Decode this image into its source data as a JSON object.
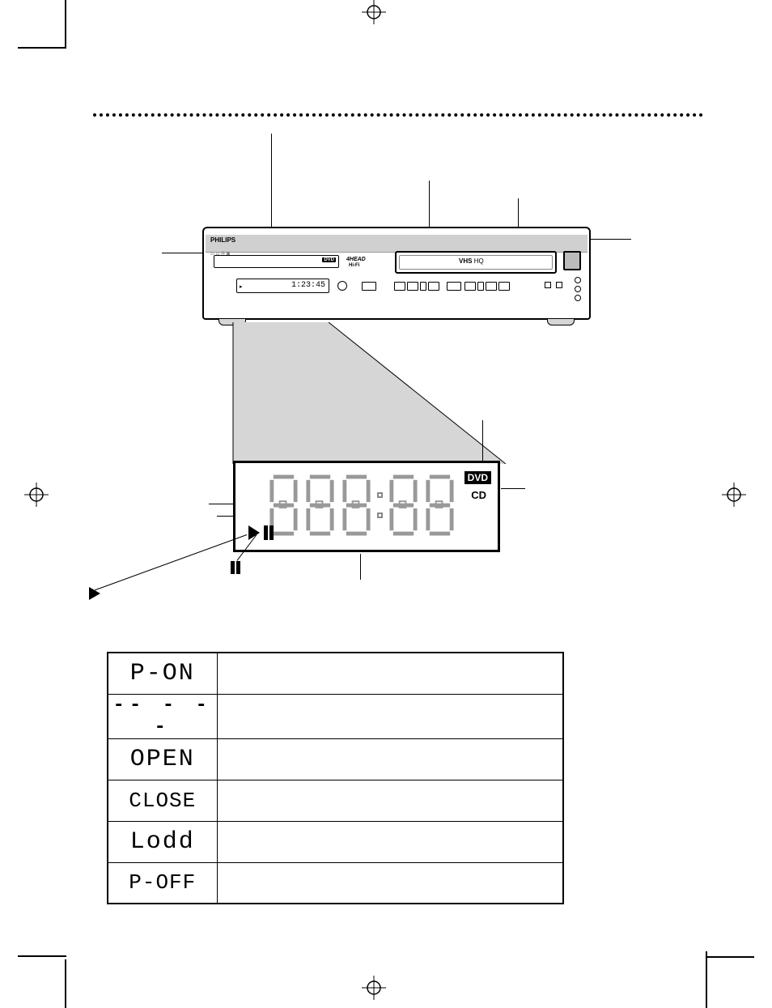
{
  "page": {
    "dotted_rule": true,
    "background": "#ffffff",
    "dims": [
      954,
      1235
    ]
  },
  "device": {
    "brand": "PHILIPS",
    "hifi_label_top": "4HEAD",
    "hifi_label": "Hi-Fi",
    "vhs_label": "VHS",
    "vhs_hq": "HQ",
    "lcd_sample": "1:23:45"
  },
  "lcd_detail": {
    "dvd_badge": "DVD",
    "cd_label": "CD",
    "play_icon": "play-icon",
    "pause_icon": "pause-icon",
    "digit_segments_color": "#999999",
    "digit_count": 5,
    "colon_after_index": 2
  },
  "display_codes": [
    {
      "code": "P-ON",
      "segstyle": "seg",
      "meaning": ""
    },
    {
      "code": "-- - --",
      "segstyle": "dash",
      "meaning": ""
    },
    {
      "code": "OPEN",
      "segstyle": "seg",
      "meaning": ""
    },
    {
      "code": "CLOSE",
      "segstyle": "seg-small",
      "meaning": ""
    },
    {
      "code": "Lodd",
      "segstyle": "seg",
      "meaning": ""
    },
    {
      "code": "P-OFF",
      "segstyle": "seg-small",
      "meaning": ""
    }
  ],
  "icons": {
    "play": "▶",
    "pause": "❚❚"
  },
  "colors": {
    "line": "#000000",
    "grey_fill": "#d6d6d6",
    "seg_grey": "#888888"
  }
}
